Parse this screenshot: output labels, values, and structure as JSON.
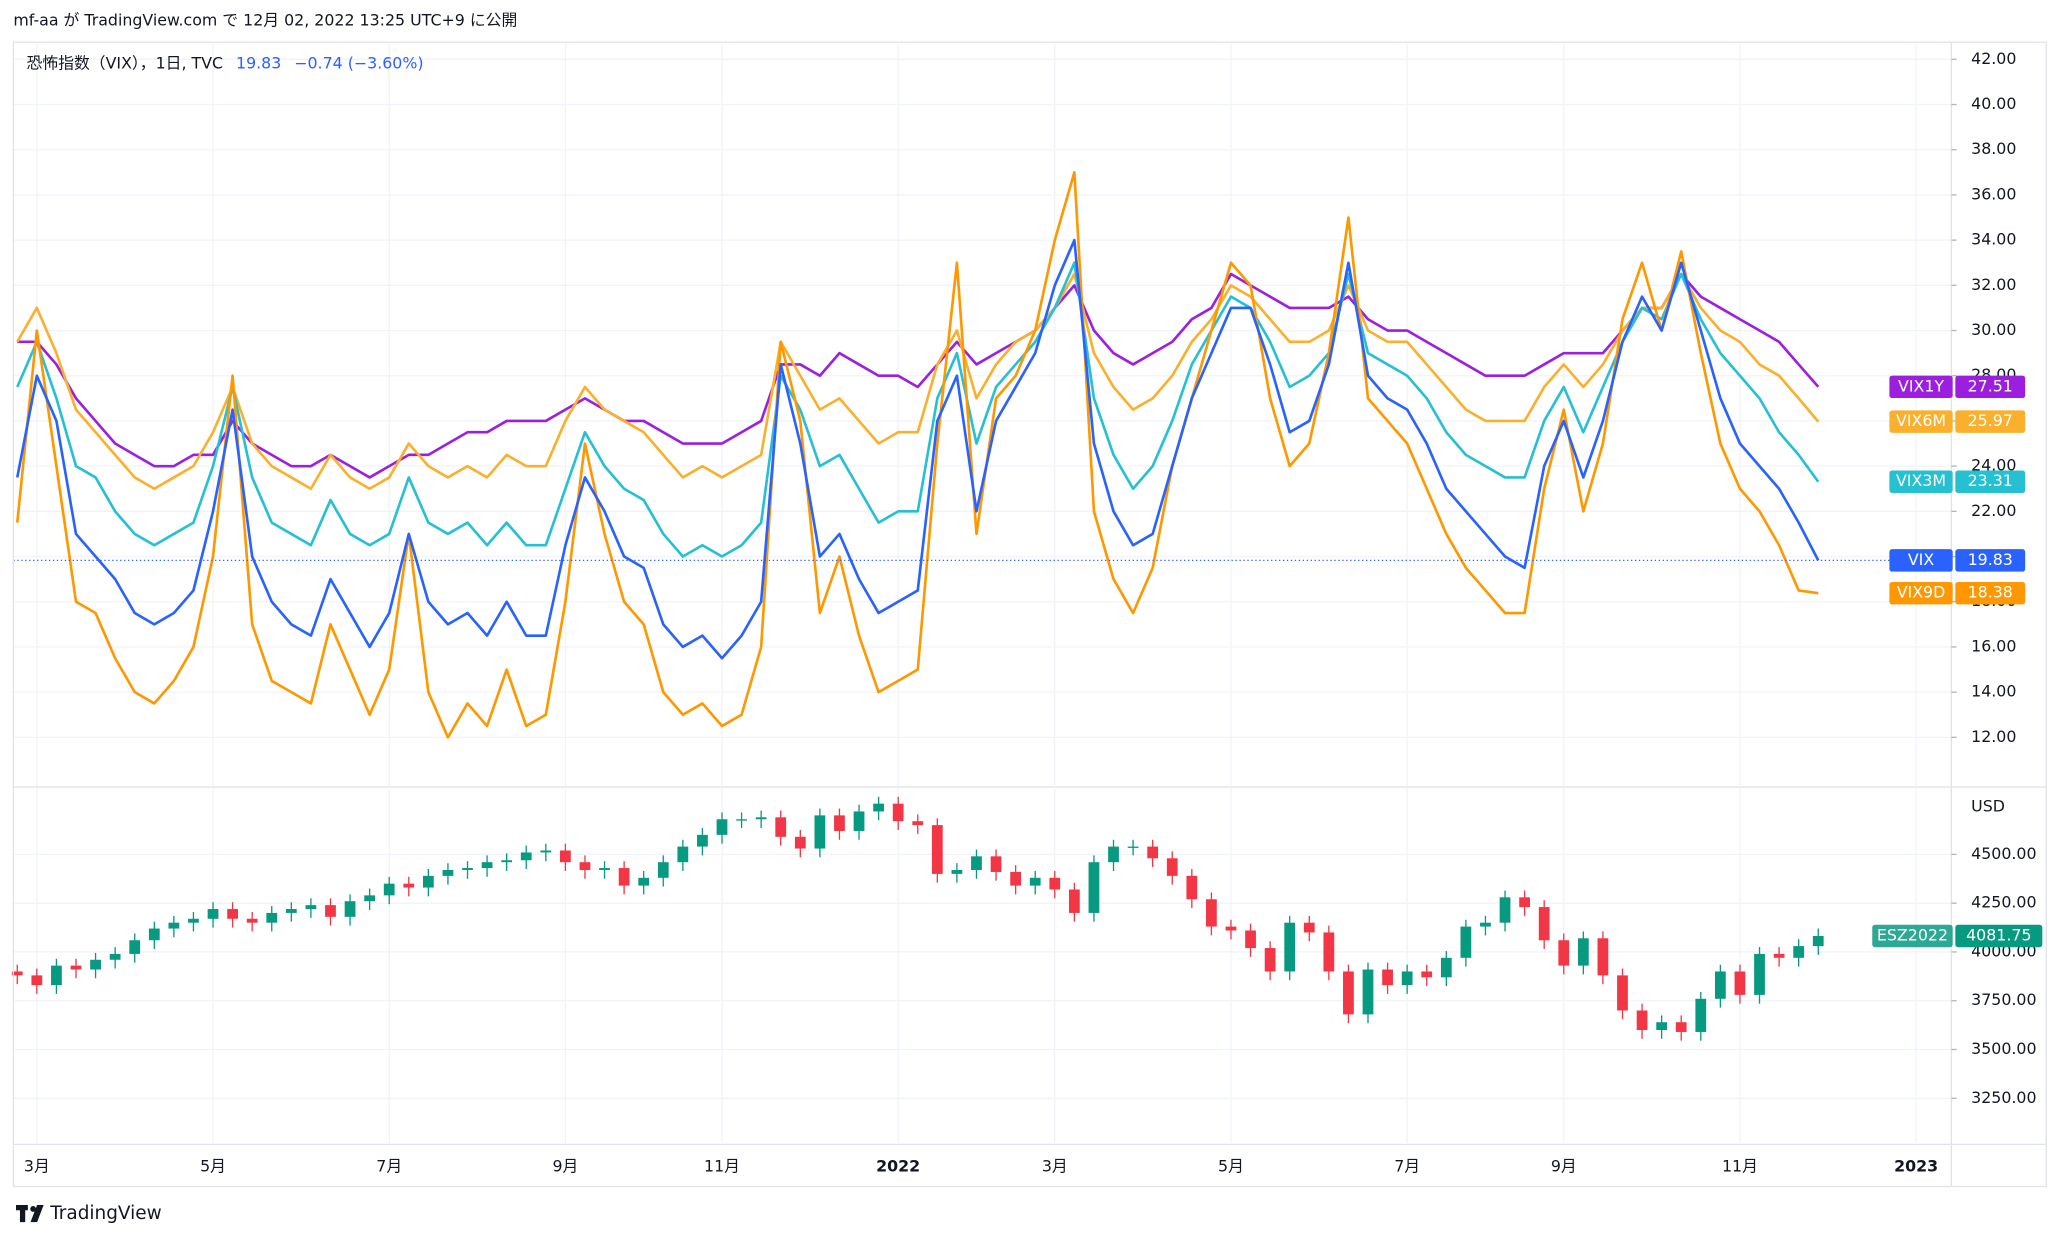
{
  "header": {
    "text": "mf-aa が TradingView.com で 12月 02, 2022 13:25 UTC+9 に公開",
    "legend_title": "恐怖指数（VIX），1日, TVC",
    "legend_change": "−0.74 (−3.60%)"
  },
  "footer": {
    "brand": "TradingView"
  },
  "chart_data": [
    {
      "type": "line",
      "categories": [
        null,
        "3月",
        null,
        null,
        null,
        null,
        null,
        null,
        null,
        null,
        "5月",
        null,
        null,
        null,
        null,
        null,
        null,
        null,
        null,
        "7月",
        null,
        null,
        null,
        null,
        null,
        null,
        null,
        null,
        "9月",
        null,
        null,
        null,
        null,
        null,
        null,
        null,
        "11月",
        null,
        null,
        null,
        null,
        null,
        null,
        null,
        null,
        "2022",
        null,
        null,
        null,
        null,
        null,
        null,
        null,
        "3月",
        null,
        null,
        null,
        null,
        null,
        null,
        null,
        null,
        "5月",
        null,
        null,
        null,
        null,
        null,
        null,
        null,
        null,
        "7月",
        null,
        null,
        null,
        null,
        null,
        null,
        null,
        "9月",
        null,
        null,
        null,
        null,
        null,
        null,
        null,
        null,
        "11月",
        null,
        null,
        null,
        null,
        null,
        null,
        null,
        null,
        "2023",
        null
      ],
      "ylim": [
        9.8,
        42.7
      ],
      "yticks": [
        {
          "value": 12,
          "label": "12.00"
        },
        {
          "value": 14,
          "label": "14.00"
        },
        {
          "value": 16,
          "label": "16.00"
        },
        {
          "value": 18,
          "label": "18.00"
        },
        {
          "value": 20,
          "label": "20.00"
        },
        {
          "value": 22,
          "label": "22.00"
        },
        {
          "value": 24,
          "label": "24.00"
        },
        {
          "value": 26,
          "label": "26.00"
        },
        {
          "value": 28,
          "label": "28.00"
        },
        {
          "value": 30,
          "label": "30.00"
        },
        {
          "value": 32,
          "label": "32.00"
        },
        {
          "value": 34,
          "label": "34.00"
        },
        {
          "value": 36,
          "label": "36.00"
        },
        {
          "value": 38,
          "label": "38.00"
        },
        {
          "value": 40,
          "label": "40.00"
        },
        {
          "value": 42,
          "label": "42.00"
        }
      ],
      "grid": true,
      "series": [
        {
          "name": "VIX",
          "color": "#2962ff",
          "values": [
            23.5,
            28,
            26,
            21,
            20,
            19,
            17.5,
            17,
            17.5,
            18.5,
            22,
            26.5,
            20,
            18,
            17,
            16.5,
            19,
            17.5,
            16,
            17.5,
            21,
            18,
            17,
            17.5,
            16.5,
            18,
            16.5,
            16.5,
            20.5,
            23.5,
            22,
            20,
            19.5,
            17,
            16,
            16.5,
            15.5,
            16.5,
            18,
            28.5,
            25,
            20,
            21,
            19,
            17.5,
            18,
            18.5,
            26,
            28,
            22,
            26,
            27.5,
            29,
            32,
            34,
            25,
            22,
            20.5,
            21,
            24,
            27,
            29,
            31,
            31,
            28.5,
            25.5,
            26,
            28.5,
            33,
            28,
            27,
            26.5,
            25,
            23,
            22,
            21,
            20,
            19.5,
            24,
            26,
            23.5,
            26,
            29.5,
            31.5,
            30,
            33,
            30,
            27,
            25,
            24,
            23,
            21.5,
            19.83,
            null,
            null,
            null,
            null,
            null,
            null
          ]
        },
        {
          "name": "VIX9D",
          "color": "#ff9800",
          "values": [
            21.5,
            30,
            24,
            18,
            17.5,
            15.5,
            14,
            13.5,
            14.5,
            16,
            20,
            28,
            17,
            14.5,
            14,
            13.5,
            17,
            15,
            13,
            15,
            21,
            14,
            12,
            13.5,
            12.5,
            15,
            12.5,
            13,
            18,
            25,
            21,
            18,
            17,
            14,
            13,
            13.5,
            12.5,
            13,
            16,
            29.5,
            26,
            17.5,
            20,
            16.5,
            14,
            14.5,
            15,
            25,
            33,
            21,
            27,
            28,
            30,
            34,
            37,
            22,
            19,
            17.5,
            19.5,
            24,
            27,
            30,
            33,
            32,
            27,
            24,
            25,
            29,
            35,
            27,
            26,
            25,
            23,
            21,
            19.5,
            18.5,
            17.5,
            17.5,
            23,
            26.5,
            22,
            25,
            30.5,
            33,
            30,
            33.5,
            29,
            25,
            23,
            22,
            20.5,
            18.5,
            18.38,
            null,
            null,
            null,
            null,
            null,
            null
          ]
        },
        {
          "name": "VIX3M",
          "color": "#26c0d3",
          "values": [
            27.5,
            29.5,
            27,
            24,
            23.5,
            22,
            21,
            20.5,
            21,
            21.5,
            24,
            27.5,
            23.5,
            21.5,
            21,
            20.5,
            22.5,
            21,
            20.5,
            21,
            23.5,
            21.5,
            21,
            21.5,
            20.5,
            21.5,
            20.5,
            20.5,
            23,
            25.5,
            24,
            23,
            22.5,
            21,
            20,
            20.5,
            20,
            20.5,
            21.5,
            28,
            26.5,
            24,
            24.5,
            23,
            21.5,
            22,
            22,
            27,
            29,
            25,
            27.5,
            28.5,
            29.5,
            31,
            33,
            27,
            24.5,
            23,
            24,
            26,
            28.5,
            30,
            31.5,
            31,
            29.5,
            27.5,
            28,
            29,
            32.5,
            29,
            28.5,
            28,
            27,
            25.5,
            24.5,
            24,
            23.5,
            23.5,
            26,
            27.5,
            25.5,
            27.5,
            29.5,
            31,
            30.5,
            32.5,
            30.5,
            29,
            28,
            27,
            25.5,
            24.5,
            23.31,
            null,
            null,
            null,
            null,
            null,
            null
          ]
        },
        {
          "name": "VIX6M",
          "color": "#fbb02d",
          "values": [
            29.5,
            31,
            29,
            26.5,
            25.5,
            24.5,
            23.5,
            23,
            23.5,
            24,
            25.5,
            27.5,
            25,
            24,
            23.5,
            23,
            24.5,
            23.5,
            23,
            23.5,
            25,
            24,
            23.5,
            24,
            23.5,
            24.5,
            24,
            24,
            26,
            27.5,
            26.5,
            26,
            25.5,
            24.5,
            23.5,
            24,
            23.5,
            24,
            24.5,
            29.5,
            28,
            26.5,
            27,
            26,
            25,
            25.5,
            25.5,
            28.5,
            30,
            27,
            28.5,
            29.5,
            30,
            31,
            32.5,
            29,
            27.5,
            26.5,
            27,
            28,
            29.5,
            30.5,
            32,
            31.5,
            30.5,
            29.5,
            29.5,
            30,
            32,
            30,
            29.5,
            29.5,
            28.5,
            27.5,
            26.5,
            26,
            26,
            26,
            27.5,
            28.5,
            27.5,
            28.5,
            30,
            31,
            31,
            32.5,
            31,
            30,
            29.5,
            28.5,
            28,
            27,
            25.97,
            null,
            null,
            null,
            null,
            null,
            null
          ]
        },
        {
          "name": "VIX1Y",
          "color": "#9c1fe0",
          "values": [
            29.5,
            29.5,
            28.5,
            27,
            26,
            25,
            24.5,
            24,
            24,
            24.5,
            24.5,
            26,
            25,
            24.5,
            24,
            24,
            24.5,
            24,
            23.5,
            24,
            24.5,
            24.5,
            25,
            25.5,
            25.5,
            26,
            26,
            26,
            26.5,
            27,
            26.5,
            26,
            26,
            25.5,
            25,
            25,
            25,
            25.5,
            26,
            28.5,
            28.5,
            28,
            29,
            28.5,
            28,
            28,
            27.5,
            28.5,
            29.5,
            28.5,
            29,
            29.5,
            30,
            31,
            32,
            30,
            29,
            28.5,
            29,
            29.5,
            30.5,
            31,
            32.5,
            32,
            31.5,
            31,
            31,
            31,
            31.5,
            30.5,
            30,
            30,
            29.5,
            29,
            28.5,
            28,
            28,
            28,
            28.5,
            29,
            29,
            29,
            30,
            31,
            31,
            32.5,
            31.5,
            31,
            30.5,
            30,
            29.5,
            28.5,
            27.51,
            null,
            null,
            null,
            null,
            null,
            null
          ]
        }
      ]
    },
    {
      "type": "candlestick",
      "y_unit": "USD",
      "ylim": [
        3014,
        4845
      ],
      "yticks": [
        {
          "value": 3250,
          "label": "3250.00"
        },
        {
          "value": 3500,
          "label": "3500.00"
        },
        {
          "value": 3750,
          "label": "3750.00"
        },
        {
          "value": 4000,
          "label": "4000.00"
        },
        {
          "value": 4250,
          "label": "4250.00"
        },
        {
          "value": 4500,
          "label": "4500.00"
        }
      ],
      "up_color": "#089981",
      "down_color": "#f23645",
      "series": [
        {
          "name": "ESZ2022",
          "open": [
            3900,
            3880,
            3830,
            3930,
            3910,
            3960,
            3990,
            4060,
            4120,
            4150,
            4170,
            4220,
            4170,
            4150,
            4200,
            4220,
            4240,
            4180,
            4260,
            4290,
            4350,
            4330,
            4390,
            4420,
            4430,
            4460,
            4470,
            4510,
            4520,
            4460,
            4420,
            4430,
            4340,
            4380,
            4460,
            4540,
            4600,
            4680,
            4680,
            4690,
            4590,
            4530,
            4700,
            4620,
            4720,
            4760,
            4670,
            4650,
            4400,
            4420,
            4490,
            4410,
            4340,
            4380,
            4320,
            4200,
            4460,
            4540,
            4540,
            4480,
            4390,
            4270,
            4130,
            4110,
            4020,
            3900,
            4150,
            4100,
            3900,
            3680,
            3910,
            3830,
            3900,
            3870,
            3970,
            4130,
            4150,
            4280,
            4230,
            4060,
            3930,
            4070,
            3880,
            3700,
            3600,
            3640,
            3590,
            3760,
            3900,
            3780,
            3990,
            3970,
            4030,
            null,
            null,
            null,
            null,
            null,
            null
          ],
          "high": [
            3935,
            3915,
            3965,
            3965,
            3995,
            4025,
            4095,
            4155,
            4185,
            4205,
            4255,
            4255,
            4205,
            4235,
            4255,
            4275,
            4275,
            4295,
            4325,
            4385,
            4385,
            4425,
            4455,
            4465,
            4495,
            4505,
            4545,
            4555,
            4555,
            4495,
            4465,
            4465,
            4415,
            4495,
            4575,
            4635,
            4715,
            4715,
            4725,
            4725,
            4625,
            4735,
            4735,
            4755,
            4795,
            4795,
            4705,
            4685,
            4455,
            4525,
            4525,
            4445,
            4415,
            4415,
            4355,
            4495,
            4575,
            4575,
            4575,
            4515,
            4425,
            4305,
            4165,
            4145,
            4055,
            4185,
            4185,
            4135,
            3935,
            3945,
            3945,
            3935,
            3935,
            4005,
            4165,
            4185,
            4315,
            4315,
            4265,
            4095,
            4105,
            4105,
            3915,
            3735,
            3675,
            3675,
            3795,
            3935,
            3935,
            4025,
            4025,
            4065,
            4120,
            null,
            null,
            null,
            null,
            null,
            null
          ],
          "low": [
            3835,
            3785,
            3785,
            3865,
            3865,
            3915,
            3945,
            4015,
            4075,
            4105,
            4125,
            4125,
            4105,
            4105,
            4155,
            4175,
            4135,
            4135,
            4215,
            4245,
            4285,
            4285,
            4345,
            4375,
            4385,
            4415,
            4425,
            4465,
            4415,
            4375,
            4375,
            4295,
            4295,
            4335,
            4415,
            4495,
            4555,
            4635,
            4635,
            4545,
            4485,
            4485,
            4575,
            4575,
            4675,
            4625,
            4605,
            4355,
            4355,
            4375,
            4365,
            4295,
            4295,
            4275,
            4155,
            4155,
            4415,
            4495,
            4435,
            4345,
            4225,
            4085,
            4065,
            3975,
            3855,
            3855,
            4055,
            3855,
            3635,
            3635,
            3785,
            3785,
            3825,
            3825,
            3925,
            4085,
            4105,
            4185,
            4015,
            3885,
            3885,
            3835,
            3655,
            3555,
            3555,
            3545,
            3545,
            3715,
            3735,
            3735,
            3925,
            3925,
            3985,
            null,
            null,
            null,
            null,
            null,
            null
          ],
          "close": [
            3880,
            3830,
            3930,
            3910,
            3960,
            3990,
            4060,
            4120,
            4150,
            4170,
            4220,
            4170,
            4150,
            4200,
            4220,
            4240,
            4180,
            4260,
            4290,
            4350,
            4330,
            4390,
            4420,
            4430,
            4460,
            4470,
            4510,
            4520,
            4460,
            4420,
            4430,
            4340,
            4380,
            4460,
            4540,
            4600,
            4680,
            4680,
            4690,
            4590,
            4530,
            4700,
            4620,
            4720,
            4760,
            4670,
            4650,
            4400,
            4420,
            4490,
            4410,
            4340,
            4380,
            4320,
            4200,
            4460,
            4540,
            4540,
            4480,
            4390,
            4270,
            4130,
            4110,
            4020,
            3900,
            4150,
            4100,
            3900,
            3680,
            3910,
            3830,
            3900,
            3870,
            3970,
            4130,
            4150,
            4280,
            4230,
            4060,
            3930,
            4070,
            3880,
            3700,
            3600,
            3640,
            3590,
            3760,
            3900,
            3780,
            3990,
            3970,
            4030,
            4081.75,
            null,
            null,
            null,
            null,
            null,
            null
          ]
        }
      ]
    }
  ]
}
